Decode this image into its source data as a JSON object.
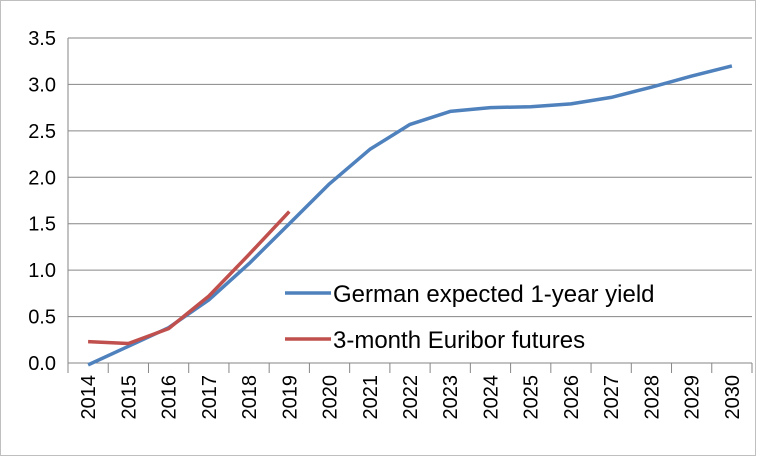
{
  "chart_data": {
    "type": "line",
    "categories": [
      "2014",
      "2015",
      "2016",
      "2017",
      "2018",
      "2019",
      "2020",
      "2021",
      "2022",
      "2023",
      "2024",
      "2025",
      "2026",
      "2027",
      "2028",
      "2029",
      "2030"
    ],
    "series": [
      {
        "name": "German expected 1-year yield",
        "color": "#4f81bd",
        "values": [
          -0.02,
          0.18,
          0.38,
          0.68,
          1.07,
          1.5,
          1.93,
          2.3,
          2.57,
          2.71,
          2.75,
          2.76,
          2.79,
          2.86,
          2.97,
          3.09,
          3.2
        ]
      },
      {
        "name": "3-month Euribor futures",
        "color": "#c0504d",
        "values": [
          0.23,
          0.21,
          0.37,
          0.72,
          1.17,
          1.63,
          null,
          null,
          null,
          null,
          null,
          null,
          null,
          null,
          null,
          null,
          null
        ]
      }
    ],
    "ylim": [
      0,
      3.5
    ],
    "yticks": [
      {
        "value": 0,
        "label": "0.0"
      },
      {
        "value": 0.5,
        "label": "0.5"
      },
      {
        "value": 1,
        "label": "1.0"
      },
      {
        "value": 1.5,
        "label": "1.5"
      },
      {
        "value": 2,
        "label": "2.0"
      },
      {
        "value": 2.5,
        "label": "2.5"
      },
      {
        "value": 3,
        "label": "3.0"
      },
      {
        "value": 3.5,
        "label": "3.5"
      }
    ],
    "grid": true
  }
}
